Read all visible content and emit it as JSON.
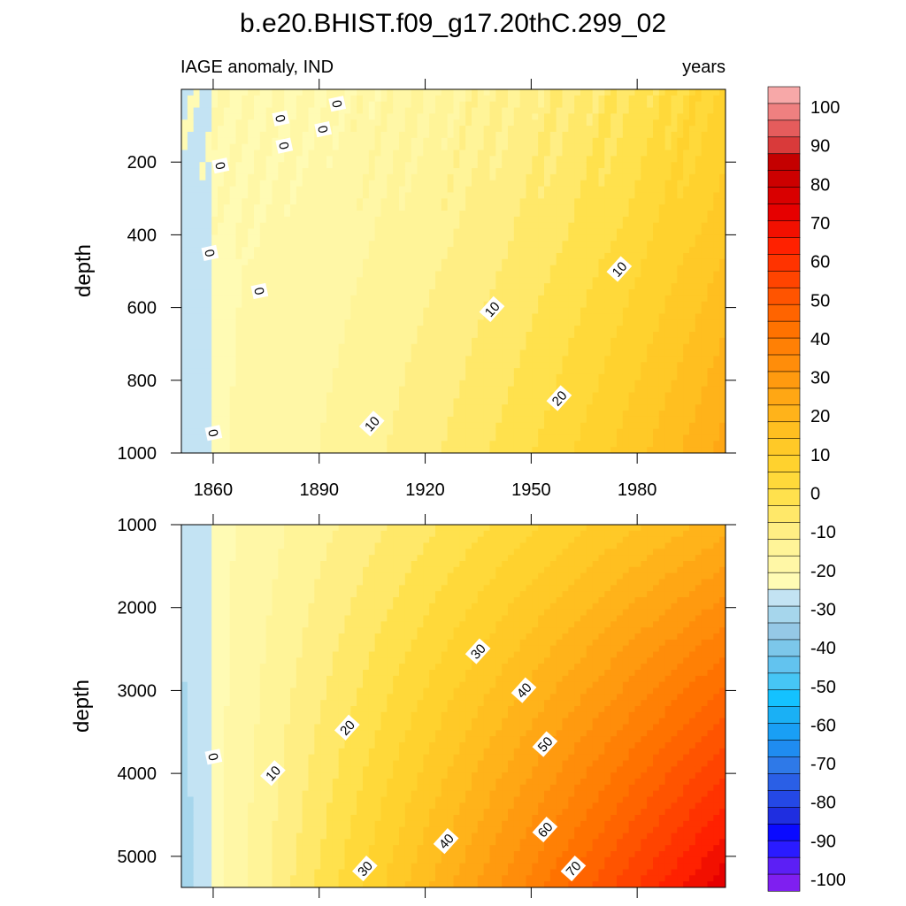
{
  "title": "b.e20.BHIST.f09_g17.20thC.299_02",
  "colors": {
    "negative": [
      "#7f1ff0",
      "#5c1ff5",
      "#2a1bff",
      "#0a0aff",
      "#1f2ee0",
      "#2448e6",
      "#2a5fe6",
      "#2e79e8",
      "#1f8cf0",
      "#199ff5",
      "#1ab0f5",
      "#14c2ff",
      "#46c6f5",
      "#62c3ef",
      "#7cc7ea",
      "#95c8e6",
      "#a6d6ec",
      "#c3e3f3"
    ],
    "positive": [
      "#fffbb4",
      "#fff7a6",
      "#fff498",
      "#ffee84",
      "#ffe869",
      "#ffe14d",
      "#ffd93a",
      "#ffd22e",
      "#ffc927",
      "#ffbf20",
      "#ffb31a",
      "#ffa714",
      "#ff9a0f",
      "#ff8d0a",
      "#ff8005",
      "#ff7200",
      "#ff6400",
      "#ff5400",
      "#ff4400",
      "#ff3300",
      "#ff2100",
      "#f21000",
      "#e60000",
      "#d90000",
      "#cc0000",
      "#c40000",
      "#d93a3a",
      "#e55c5c",
      "#ef8080",
      "#f7a8a8"
    ]
  },
  "chart_data": [
    {
      "type": "contour",
      "panel": "top",
      "left_label": "IAGE anomaly, IND",
      "right_label": "years",
      "ylabel": "depth",
      "x_ticks": [
        1860,
        1890,
        1920,
        1950,
        1980
      ],
      "xlim": [
        1851,
        2005
      ],
      "y_ticks": [
        200,
        400,
        600,
        800,
        1000
      ],
      "ylim": [
        0,
        1000
      ],
      "y_inverted": true,
      "contour_labels": [
        {
          "text": "0",
          "x": 1879,
          "y": 80
        },
        {
          "text": "0",
          "x": 1895,
          "y": 40
        },
        {
          "text": "0",
          "x": 1891,
          "y": 110
        },
        {
          "text": "0",
          "x": 1880,
          "y": 155
        },
        {
          "text": "0",
          "x": 1862,
          "y": 210
        },
        {
          "text": "0",
          "x": 1859,
          "y": 450
        },
        {
          "text": "0",
          "x": 1873,
          "y": 555
        },
        {
          "text": "0",
          "x": 1860,
          "y": 945
        },
        {
          "text": "10",
          "x": 1975,
          "y": 495
        },
        {
          "text": "10",
          "x": 1939,
          "y": 605
        },
        {
          "text": "10",
          "x": 1905,
          "y": 920
        },
        {
          "text": "20",
          "x": 1958,
          "y": 850
        }
      ]
    },
    {
      "type": "contour",
      "panel": "bottom",
      "ylabel": "depth",
      "xlim": [
        1851,
        2005
      ],
      "y_ticks": [
        1000,
        2000,
        3000,
        4000,
        5000
      ],
      "ylim": [
        1000,
        5375
      ],
      "y_inverted": true,
      "contour_labels": [
        {
          "text": "0",
          "x": 1860,
          "y": 3800
        },
        {
          "text": "10",
          "x": 1877,
          "y": 4000
        },
        {
          "text": "20",
          "x": 1898,
          "y": 3450
        },
        {
          "text": "30",
          "x": 1935,
          "y": 2530
        },
        {
          "text": "30",
          "x": 1903,
          "y": 5150
        },
        {
          "text": "40",
          "x": 1948,
          "y": 3000
        },
        {
          "text": "40",
          "x": 1926,
          "y": 4820
        },
        {
          "text": "50",
          "x": 1954,
          "y": 3650
        },
        {
          "text": "60",
          "x": 1954,
          "y": 4680
        },
        {
          "text": "70",
          "x": 1962,
          "y": 5150
        }
      ]
    }
  ],
  "colorbar": {
    "labels": [
      "100",
      "90",
      "80",
      "70",
      "60",
      "50",
      "40",
      "30",
      "20",
      "10",
      "0",
      "-10",
      "-20",
      "-30",
      "-40",
      "-50",
      "-60",
      "-70",
      "-80",
      "-90",
      "-100"
    ]
  }
}
